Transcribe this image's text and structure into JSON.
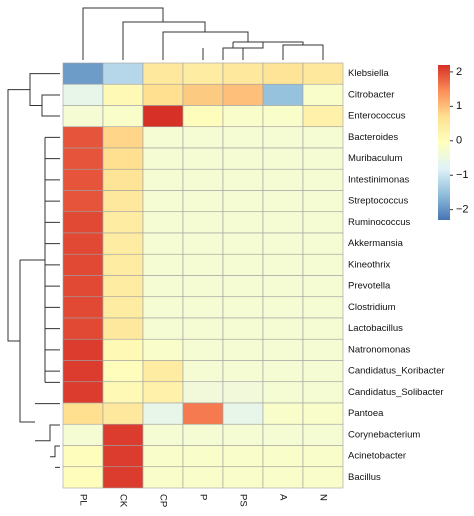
{
  "chart_data": {
    "type": "heatmap",
    "columns": [
      "PL",
      "CK",
      "CP",
      "P",
      "PS",
      "A",
      "N"
    ],
    "rows": [
      "Klebsiella",
      "Citrobacter",
      "Enterococcus",
      "Bacteroides",
      "Muribaculum",
      "Intestinimonas",
      "Streptococcus",
      "Ruminococcus",
      "Akkermansia",
      "Kineothrix",
      "Prevotella",
      "Clostridium",
      "Lactobacillus",
      "Natronomonas",
      "Candidatus_Koribacter",
      "Candidatus_Solibacter",
      "Pantoea",
      "Corynebacterium",
      "Acinetobacter",
      "Bacillus"
    ],
    "values": [
      [
        -1.9,
        -1.2,
        0.5,
        0.4,
        0.5,
        0.6,
        0.5
      ],
      [
        -0.6,
        0.1,
        0.7,
        0.9,
        1.0,
        -1.5,
        -0.2
      ],
      [
        -0.3,
        -0.2,
        2.2,
        0.0,
        -0.2,
        -0.2,
        0.3
      ],
      [
        1.9,
        0.8,
        -0.3,
        -0.3,
        -0.3,
        -0.3,
        -0.3
      ],
      [
        1.9,
        0.7,
        -0.3,
        -0.3,
        -0.3,
        -0.3,
        -0.3
      ],
      [
        1.9,
        0.6,
        -0.3,
        -0.3,
        -0.3,
        -0.3,
        -0.3
      ],
      [
        1.9,
        0.5,
        -0.3,
        -0.3,
        -0.3,
        -0.3,
        -0.3
      ],
      [
        2.0,
        0.4,
        -0.3,
        -0.3,
        -0.3,
        -0.3,
        -0.3
      ],
      [
        2.0,
        0.4,
        -0.3,
        -0.3,
        -0.3,
        -0.3,
        -0.3
      ],
      [
        2.0,
        0.4,
        -0.3,
        -0.3,
        -0.3,
        -0.3,
        -0.3
      ],
      [
        2.0,
        0.4,
        -0.3,
        -0.3,
        -0.3,
        -0.3,
        -0.3
      ],
      [
        2.0,
        0.4,
        -0.3,
        -0.3,
        -0.3,
        -0.3,
        -0.3
      ],
      [
        2.0,
        0.5,
        -0.3,
        -0.3,
        -0.3,
        -0.3,
        -0.3
      ],
      [
        2.1,
        0.1,
        -0.2,
        -0.3,
        -0.3,
        -0.3,
        -0.3
      ],
      [
        2.1,
        0.0,
        0.4,
        -0.3,
        -0.3,
        -0.3,
        -0.3
      ],
      [
        2.1,
        0.1,
        0.3,
        -0.4,
        -0.4,
        -0.3,
        -0.3
      ],
      [
        0.7,
        0.5,
        -0.6,
        1.6,
        -0.6,
        -0.2,
        -0.2
      ],
      [
        -0.3,
        2.1,
        -0.3,
        -0.3,
        -0.3,
        -0.3,
        -0.3
      ],
      [
        0.0,
        2.1,
        -0.2,
        -0.2,
        -0.2,
        -0.2,
        -0.2
      ],
      [
        0.0,
        2.1,
        -0.2,
        -0.2,
        -0.2,
        -0.2,
        -0.2
      ]
    ],
    "colors": [
      "#4575b4",
      "#91bfdb",
      "#e0f3f8",
      "#ffffbf",
      "#fee090",
      "#fc8d59",
      "#d73027"
    ],
    "color_range": [
      -2.3,
      2.2
    ],
    "colorbar_ticks": [
      {
        "value": -2,
        "label": "−2"
      },
      {
        "value": -1,
        "label": "−1"
      },
      0,
      1,
      2
    ]
  }
}
